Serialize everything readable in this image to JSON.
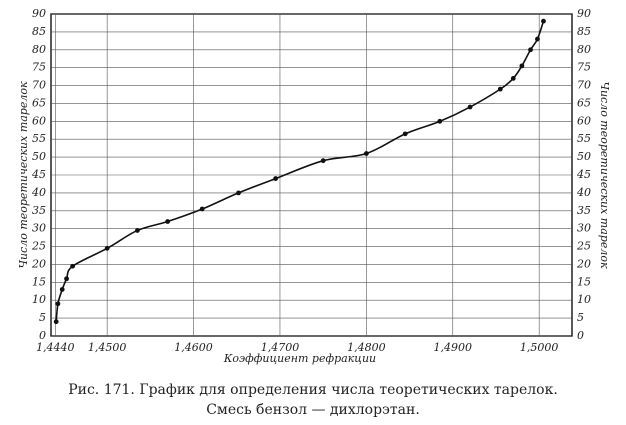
{
  "chart_data": {
    "type": "scatter",
    "ylabel": "Число теоретических тарелок",
    "xlabel": "Коэффициент рефракции",
    "caption": [
      "Рис. 171. График для определения числа теоретических тарелок.",
      "Смесь бензол — дихлорэтан."
    ],
    "x": [
      1.4441,
      1.4443,
      1.4448,
      1.4453,
      1.446,
      1.45,
      1.4535,
      1.457,
      1.461,
      1.4652,
      1.4695,
      1.475,
      1.48,
      1.4845,
      1.4885,
      1.492,
      1.4955,
      1.497,
      1.498,
      1.499,
      1.4998,
      1.5005
    ],
    "values": [
      4,
      9,
      13,
      16,
      19.5,
      24.5,
      29.5,
      32,
      35.5,
      40,
      44,
      49,
      51,
      56.5,
      60,
      64,
      69,
      72,
      75.5,
      80,
      83,
      88
    ],
    "color": "#111",
    "xlim": [
      1.4435,
      1.5038
    ],
    "ylim": [
      0,
      90
    ],
    "xticks": [
      {
        "value": 1.444,
        "label": "1,4440"
      },
      {
        "value": 1.45,
        "label": "1,4500"
      },
      {
        "value": 1.46,
        "label": "1,4600"
      },
      {
        "value": 1.47,
        "label": "1,4700"
      },
      {
        "value": 1.48,
        "label": "1,4800"
      },
      {
        "value": 1.49,
        "label": "1,4900"
      },
      {
        "value": 1.5,
        "label": "1,5000"
      }
    ],
    "yticks": [
      0,
      5,
      10,
      15,
      20,
      25,
      30,
      35,
      40,
      45,
      50,
      55,
      60,
      65,
      70,
      75,
      80,
      85,
      90
    ],
    "grid": true
  }
}
